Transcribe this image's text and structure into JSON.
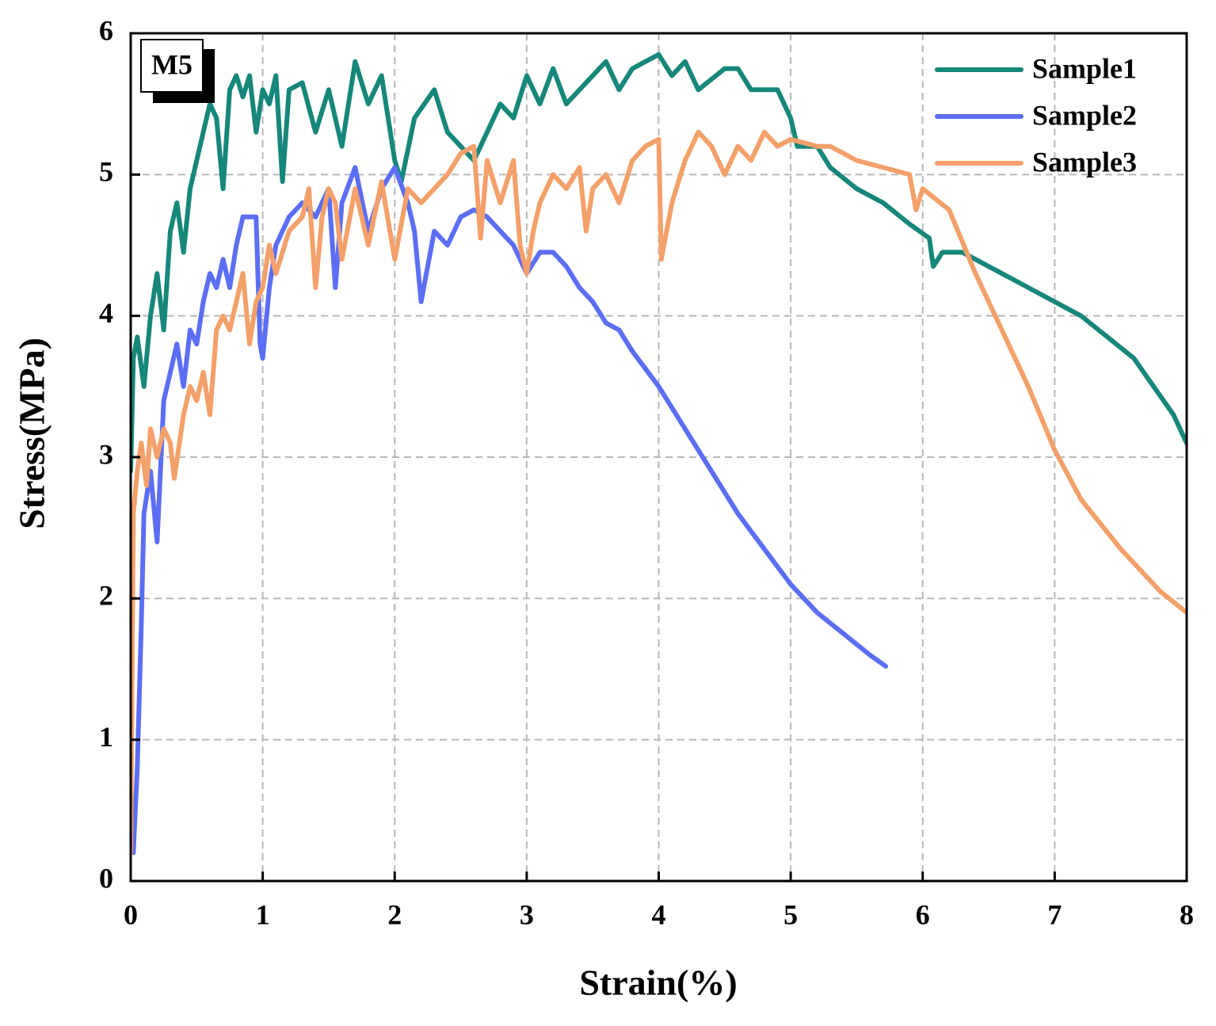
{
  "chart_data": {
    "type": "line",
    "annotation": "M5",
    "xlabel": "Strain(%)",
    "ylabel": "Stress(MPa)",
    "xlim": [
      0,
      8
    ],
    "ylim": [
      0,
      6
    ],
    "xticks": [
      0,
      1,
      2,
      3,
      4,
      5,
      6,
      7,
      8
    ],
    "yticks": [
      0,
      1,
      2,
      3,
      4,
      5,
      6
    ],
    "grid": true,
    "legend": "upper right",
    "series": [
      {
        "name": "Sample1",
        "color": "#16877a",
        "x": [
          0,
          0.02,
          0.05,
          0.1,
          0.15,
          0.2,
          0.25,
          0.3,
          0.35,
          0.4,
          0.45,
          0.5,
          0.55,
          0.6,
          0.65,
          0.7,
          0.75,
          0.8,
          0.85,
          0.9,
          0.95,
          1.0,
          1.05,
          1.1,
          1.15,
          1.2,
          1.3,
          1.4,
          1.5,
          1.6,
          1.7,
          1.8,
          1.9,
          2.0,
          2.05,
          2.15,
          2.3,
          2.4,
          2.5,
          2.6,
          2.7,
          2.8,
          2.9,
          3.0,
          3.1,
          3.2,
          3.3,
          3.4,
          3.6,
          3.7,
          3.8,
          3.9,
          4.0,
          4.1,
          4.2,
          4.3,
          4.5,
          4.6,
          4.7,
          4.9,
          5.0,
          5.05,
          5.2,
          5.3,
          5.5,
          5.7,
          5.9,
          6.05,
          6.08,
          6.15,
          6.3,
          6.5,
          6.8,
          7.2,
          7.6,
          7.9,
          8.0
        ],
        "values": [
          2.9,
          3.7,
          3.85,
          3.5,
          4.0,
          4.3,
          3.9,
          4.6,
          4.8,
          4.45,
          4.9,
          5.1,
          5.3,
          5.5,
          5.4,
          4.9,
          5.6,
          5.7,
          5.55,
          5.7,
          5.3,
          5.6,
          5.5,
          5.7,
          4.95,
          5.6,
          5.65,
          5.3,
          5.6,
          5.2,
          5.8,
          5.5,
          5.7,
          5.1,
          4.95,
          5.4,
          5.6,
          5.3,
          5.2,
          5.1,
          5.3,
          5.5,
          5.4,
          5.7,
          5.5,
          5.75,
          5.5,
          5.6,
          5.8,
          5.6,
          5.75,
          5.8,
          5.85,
          5.7,
          5.8,
          5.6,
          5.75,
          5.75,
          5.6,
          5.6,
          5.4,
          5.2,
          5.2,
          5.05,
          4.9,
          4.8,
          4.65,
          4.55,
          4.35,
          4.45,
          4.45,
          4.35,
          4.2,
          4.0,
          3.7,
          3.3,
          3.1
        ]
      },
      {
        "name": "Sample2",
        "color": "#5b6ef5",
        "x": [
          0.02,
          0.05,
          0.08,
          0.1,
          0.15,
          0.2,
          0.25,
          0.3,
          0.35,
          0.4,
          0.45,
          0.5,
          0.55,
          0.6,
          0.65,
          0.7,
          0.75,
          0.8,
          0.85,
          0.95,
          0.98,
          1.0,
          1.05,
          1.1,
          1.2,
          1.3,
          1.4,
          1.5,
          1.55,
          1.6,
          1.7,
          1.8,
          1.9,
          2.0,
          2.1,
          2.15,
          2.2,
          2.3,
          2.4,
          2.5,
          2.6,
          2.7,
          2.8,
          2.9,
          3.0,
          3.1,
          3.2,
          3.3,
          3.4,
          3.5,
          3.6,
          3.7,
          3.8,
          4.0,
          4.2,
          4.4,
          4.6,
          4.8,
          5.0,
          5.2,
          5.4,
          5.6,
          5.72
        ],
        "values": [
          0.2,
          0.8,
          1.8,
          2.6,
          2.9,
          2.4,
          3.4,
          3.6,
          3.8,
          3.5,
          3.9,
          3.8,
          4.1,
          4.3,
          4.2,
          4.4,
          4.2,
          4.5,
          4.7,
          4.7,
          3.8,
          3.7,
          4.2,
          4.5,
          4.7,
          4.8,
          4.7,
          4.9,
          4.2,
          4.8,
          5.05,
          4.6,
          4.9,
          5.05,
          4.8,
          4.6,
          4.1,
          4.6,
          4.5,
          4.7,
          4.75,
          4.7,
          4.6,
          4.5,
          4.3,
          4.45,
          4.45,
          4.35,
          4.2,
          4.1,
          3.95,
          3.9,
          3.75,
          3.5,
          3.2,
          2.9,
          2.6,
          2.35,
          2.1,
          1.9,
          1.75,
          1.6,
          1.52
        ]
      },
      {
        "name": "Sample3",
        "color": "#f4a06a",
        "x": [
          0.0,
          0.02,
          0.05,
          0.08,
          0.12,
          0.15,
          0.2,
          0.25,
          0.3,
          0.33,
          0.4,
          0.45,
          0.5,
          0.55,
          0.6,
          0.65,
          0.7,
          0.75,
          0.8,
          0.85,
          0.9,
          0.95,
          1.0,
          1.05,
          1.1,
          1.2,
          1.3,
          1.35,
          1.4,
          1.45,
          1.5,
          1.55,
          1.6,
          1.7,
          1.8,
          1.9,
          2.0,
          2.1,
          2.2,
          2.3,
          2.4,
          2.5,
          2.6,
          2.65,
          2.7,
          2.8,
          2.9,
          2.95,
          3.0,
          3.05,
          3.1,
          3.2,
          3.3,
          3.4,
          3.45,
          3.5,
          3.6,
          3.7,
          3.8,
          3.9,
          4.0,
          4.02,
          4.1,
          4.2,
          4.3,
          4.4,
          4.5,
          4.6,
          4.7,
          4.8,
          4.9,
          5.0,
          5.2,
          5.3,
          5.5,
          5.7,
          5.9,
          5.95,
          6.0,
          6.2,
          6.4,
          6.6,
          6.8,
          7.0,
          7.2,
          7.5,
          7.8,
          8.0
        ],
        "values": [
          0.2,
          2.6,
          2.9,
          3.1,
          2.8,
          3.2,
          3.0,
          3.2,
          3.1,
          2.85,
          3.3,
          3.5,
          3.4,
          3.6,
          3.3,
          3.9,
          4.0,
          3.9,
          4.1,
          4.3,
          3.8,
          4.1,
          4.2,
          4.5,
          4.3,
          4.6,
          4.7,
          4.9,
          4.2,
          4.7,
          4.9,
          4.8,
          4.4,
          4.9,
          4.5,
          4.95,
          4.4,
          4.9,
          4.8,
          4.9,
          5.0,
          5.15,
          5.2,
          4.55,
          5.1,
          4.8,
          5.1,
          4.5,
          4.3,
          4.6,
          4.8,
          5.0,
          4.9,
          5.05,
          4.6,
          4.9,
          5.0,
          4.8,
          5.1,
          5.2,
          5.25,
          4.4,
          4.8,
          5.1,
          5.3,
          5.2,
          5.0,
          5.2,
          5.1,
          5.3,
          5.2,
          5.25,
          5.2,
          5.2,
          5.1,
          5.05,
          5.0,
          4.75,
          4.9,
          4.75,
          4.3,
          3.9,
          3.5,
          3.05,
          2.7,
          2.35,
          2.05,
          1.9
        ]
      }
    ]
  }
}
